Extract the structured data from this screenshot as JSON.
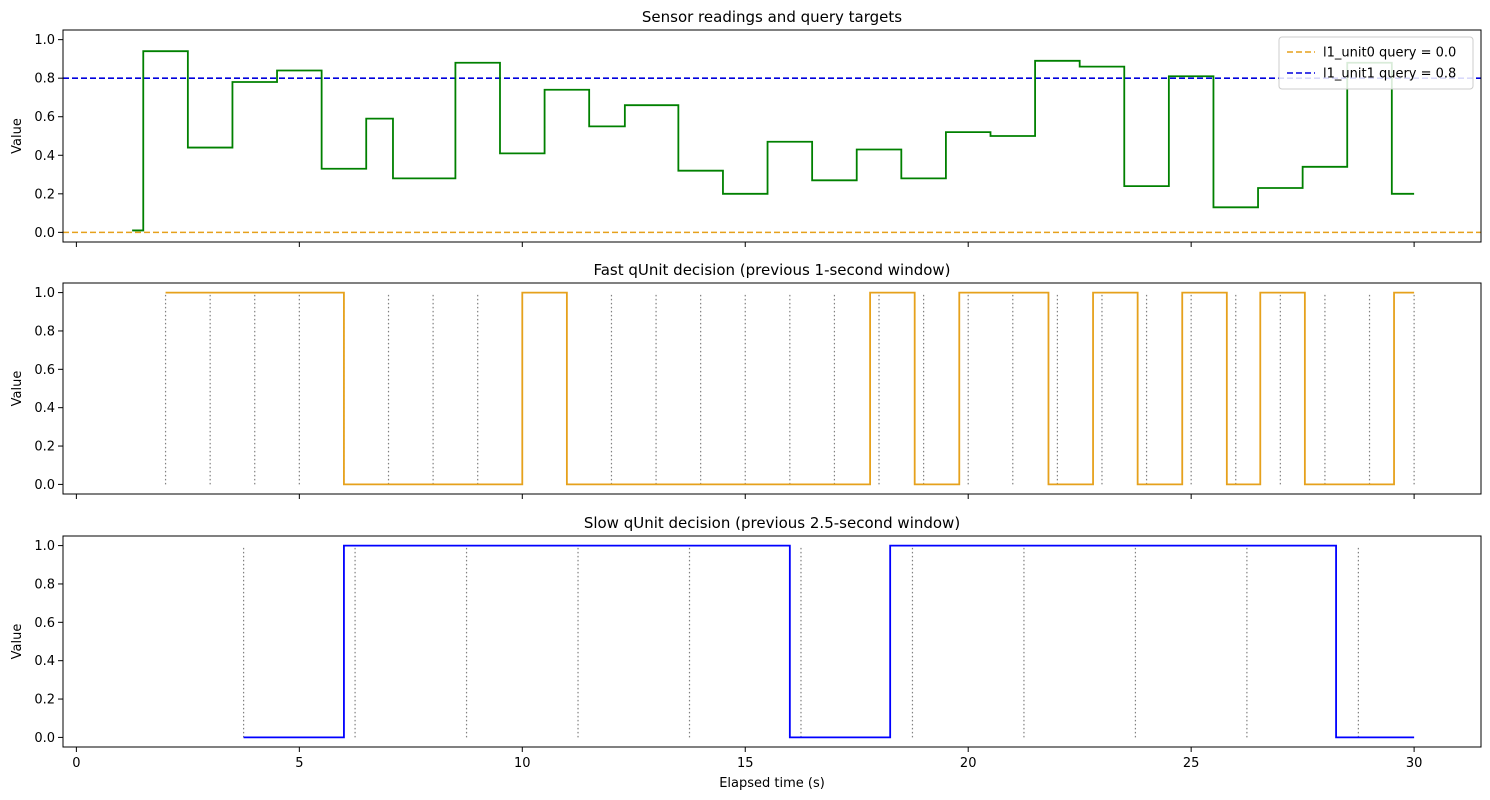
{
  "chart_data": [
    {
      "type": "line",
      "step": "post",
      "title": "Sensor readings and query targets",
      "xlabel": "",
      "ylabel": "Value",
      "xlim": [
        -0.3,
        31.5
      ],
      "ylim": [
        -0.05,
        1.05
      ],
      "xticks": [
        0,
        5,
        10,
        15,
        20,
        25,
        30
      ],
      "yticks": [
        "0.0",
        "0.2",
        "0.4",
        "0.6",
        "0.8",
        "1.0"
      ],
      "show_x_tick_labels": false,
      "grid": false,
      "legend_position": "upper right",
      "hlines": [
        {
          "name": "l1_unit0 query = 0.0",
          "y": 0.0,
          "color": "#e6a11c",
          "style": "dashed"
        },
        {
          "name": "l1_unit1 query = 0.8",
          "y": 0.8,
          "color": "#0000dd",
          "style": "dashed"
        }
      ],
      "series": [
        {
          "color": "#008000",
          "x": [
            1.25,
            1.5,
            2.5,
            3.5,
            4.5,
            5.5,
            6.5,
            7.1,
            8.5,
            9.5,
            10.5,
            11.5,
            12.3,
            13.5,
            14.5,
            15.5,
            16.5,
            17.5,
            18.5,
            19.5,
            20.5,
            21.5,
            22.5,
            23.5,
            24.5,
            25.5,
            26.5,
            27.5,
            28.5,
            29.5,
            30.0
          ],
          "y": [
            0.01,
            0.94,
            0.44,
            0.78,
            0.84,
            0.33,
            0.59,
            0.28,
            0.88,
            0.41,
            0.74,
            0.55,
            0.66,
            0.32,
            0.2,
            0.47,
            0.27,
            0.43,
            0.28,
            0.52,
            0.5,
            0.89,
            0.86,
            0.24,
            0.81,
            0.13,
            0.23,
            0.34,
            0.88,
            0.2,
            0.2
          ]
        }
      ]
    },
    {
      "type": "line",
      "step": "post",
      "title": "Fast qUnit decision (previous 1-second window)",
      "xlabel": "",
      "ylabel": "Value",
      "xlim": [
        -0.3,
        31.5
      ],
      "ylim": [
        -0.05,
        1.05
      ],
      "xticks": [
        0,
        5,
        10,
        15,
        20,
        25,
        30
      ],
      "yticks": [
        "0.0",
        "0.2",
        "0.4",
        "0.6",
        "0.8",
        "1.0"
      ],
      "show_x_tick_labels": false,
      "grid": false,
      "vlines": {
        "color": "#808080",
        "style": "dotted",
        "ymin": 0,
        "ymax": 1,
        "x": [
          2,
          3,
          4,
          5,
          6,
          7,
          8,
          9,
          10,
          11,
          12,
          13,
          14,
          15,
          16,
          17,
          18,
          19,
          20,
          21,
          22,
          23,
          24,
          25,
          26,
          27,
          28,
          29,
          30
        ]
      },
      "series": [
        {
          "color": "#e6a11c",
          "x": [
            2.0,
            6.0,
            10.0,
            11.0,
            17.8,
            18.8,
            19.8,
            21.8,
            22.8,
            23.8,
            24.8,
            25.8,
            26.55,
            27.55,
            29.55,
            30.0
          ],
          "y": [
            1,
            0,
            1,
            0,
            1,
            0,
            1,
            0,
            1,
            0,
            1,
            0,
            1,
            0,
            1,
            1
          ]
        }
      ]
    },
    {
      "type": "line",
      "step": "post",
      "title": "Slow qUnit decision (previous 2.5-second window)",
      "xlabel": "Elapsed time (s)",
      "ylabel": "Value",
      "xlim": [
        -0.3,
        31.5
      ],
      "ylim": [
        -0.05,
        1.05
      ],
      "xticks": [
        0,
        5,
        10,
        15,
        20,
        25,
        30
      ],
      "yticks": [
        "0.0",
        "0.2",
        "0.4",
        "0.6",
        "0.8",
        "1.0"
      ],
      "show_x_tick_labels": true,
      "grid": false,
      "vlines": {
        "color": "#808080",
        "style": "dotted",
        "ymin": 0,
        "ymax": 1,
        "x": [
          3.75,
          6.25,
          8.75,
          11.25,
          13.75,
          16.25,
          18.75,
          21.25,
          23.75,
          26.25,
          28.75
        ]
      },
      "series": [
        {
          "color": "#0000ff",
          "x": [
            3.75,
            6.0,
            16.0,
            18.25,
            28.25,
            30.0
          ],
          "y": [
            0,
            1,
            0,
            1,
            0,
            0
          ]
        }
      ]
    }
  ]
}
